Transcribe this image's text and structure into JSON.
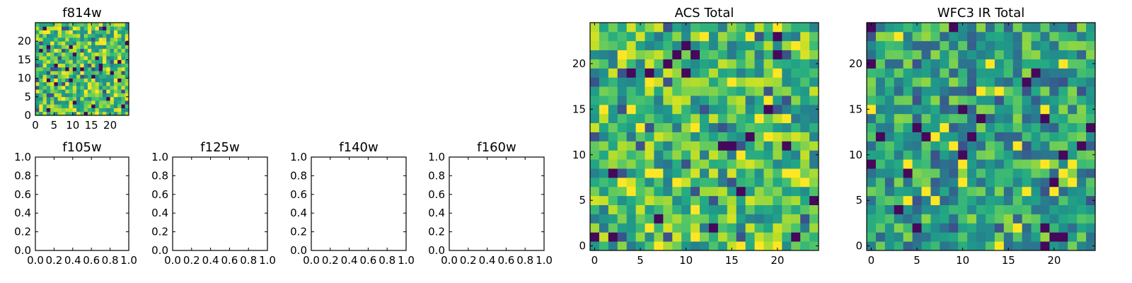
{
  "chart_data": [
    {
      "type": "heatmap",
      "title": "f814w",
      "rows": 25,
      "cols": 25,
      "xlim": [
        0,
        25
      ],
      "ylim": [
        0,
        25
      ],
      "xticks": [
        0,
        5,
        10,
        15,
        20
      ],
      "yticks": [
        0,
        5,
        10,
        15,
        20
      ],
      "colormap": "viridis",
      "value_range": [
        0,
        1
      ],
      "seed": 814,
      "bias": 0.1
    },
    {
      "type": "empty",
      "title": "f105w",
      "xlim": [
        0,
        1
      ],
      "ylim": [
        0,
        1
      ],
      "xticks": [
        0.0,
        0.2,
        0.4,
        0.6,
        0.8,
        1.0
      ],
      "yticks": [
        0.0,
        0.2,
        0.4,
        0.6,
        0.8,
        1.0
      ]
    },
    {
      "type": "empty",
      "title": "f125w",
      "xlim": [
        0,
        1
      ],
      "ylim": [
        0,
        1
      ],
      "xticks": [
        0.0,
        0.2,
        0.4,
        0.6,
        0.8,
        1.0
      ],
      "yticks": [
        0.0,
        0.2,
        0.4,
        0.6,
        0.8,
        1.0
      ]
    },
    {
      "type": "empty",
      "title": "f140w",
      "xlim": [
        0,
        1
      ],
      "ylim": [
        0,
        1
      ],
      "xticks": [
        0.0,
        0.2,
        0.4,
        0.6,
        0.8,
        1.0
      ],
      "yticks": [
        0.0,
        0.2,
        0.4,
        0.6,
        0.8,
        1.0
      ]
    },
    {
      "type": "empty",
      "title": "f160w",
      "xlim": [
        0,
        1
      ],
      "ylim": [
        0,
        1
      ],
      "xticks": [
        0.0,
        0.2,
        0.4,
        0.6,
        0.8,
        1.0
      ],
      "yticks": [
        0.0,
        0.2,
        0.4,
        0.6,
        0.8,
        1.0
      ]
    },
    {
      "type": "heatmap",
      "title": "ACS Total",
      "rows": 25,
      "cols": 25,
      "xlim": [
        -0.5,
        24.5
      ],
      "ylim": [
        -0.5,
        24.5
      ],
      "xticks": [
        0,
        5,
        10,
        15,
        20
      ],
      "yticks": [
        0,
        5,
        10,
        15,
        20
      ],
      "colormap": "viridis",
      "value_range": [
        0,
        1
      ],
      "seed": 1,
      "bias": 0.05
    },
    {
      "type": "heatmap",
      "title": "WFC3 IR Total",
      "rows": 25,
      "cols": 25,
      "xlim": [
        -0.5,
        24.5
      ],
      "ylim": [
        -0.5,
        24.5
      ],
      "xticks": [
        0,
        5,
        10,
        15,
        20
      ],
      "yticks": [
        0,
        5,
        10,
        15,
        20
      ],
      "colormap": "viridis",
      "value_range": [
        0,
        1
      ],
      "seed": 3,
      "bias": -0.05
    }
  ]
}
